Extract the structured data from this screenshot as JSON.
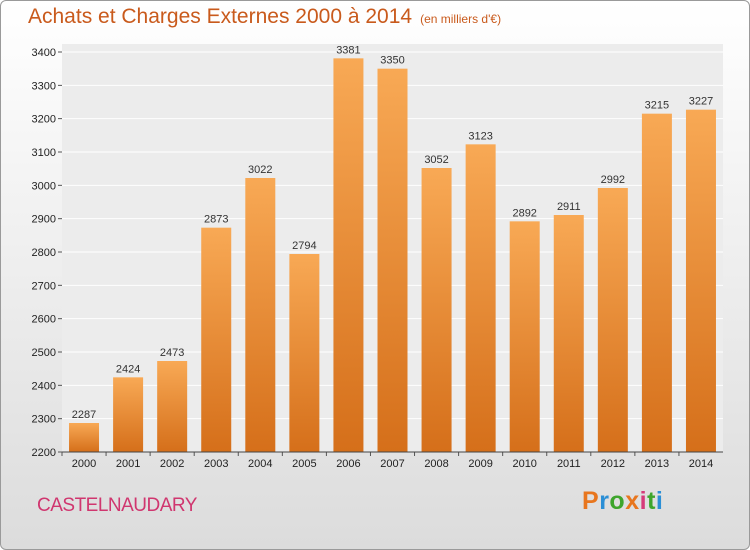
{
  "header": {
    "title": "Achats et Charges Externes 2000 à 2014",
    "unit": "(en milliers d'€)"
  },
  "footer": {
    "city": "CASTELNAUDARY",
    "brand": "Proxiti",
    "brand_colors": [
      "#e8761e",
      "#2b8fd6",
      "#3ea52c",
      "#e8761e",
      "#d63a7a",
      "#3ea52c",
      "#2b8fd6"
    ]
  },
  "colors": {
    "bar_top": "#f8a955",
    "bar_bottom": "#d56f1a",
    "title": "#c95a1c",
    "city": "#d0366f"
  },
  "chart_data": {
    "type": "bar",
    "categories": [
      "2000",
      "2001",
      "2002",
      "2003",
      "2004",
      "2005",
      "2006",
      "2007",
      "2008",
      "2009",
      "2010",
      "2011",
      "2012",
      "2013",
      "2014"
    ],
    "values": [
      2287,
      2424,
      2473,
      2873,
      3022,
      2794,
      3381,
      3350,
      3052,
      3123,
      2892,
      2911,
      2992,
      3215,
      3227
    ],
    "title": "Achats et Charges Externes 2000 à 2014",
    "ylim": [
      2200,
      3400
    ],
    "yticks": [
      2200,
      2300,
      2400,
      2500,
      2600,
      2700,
      2800,
      2900,
      3000,
      3100,
      3200,
      3300,
      3400
    ],
    "grid": true,
    "data_labels": true
  }
}
